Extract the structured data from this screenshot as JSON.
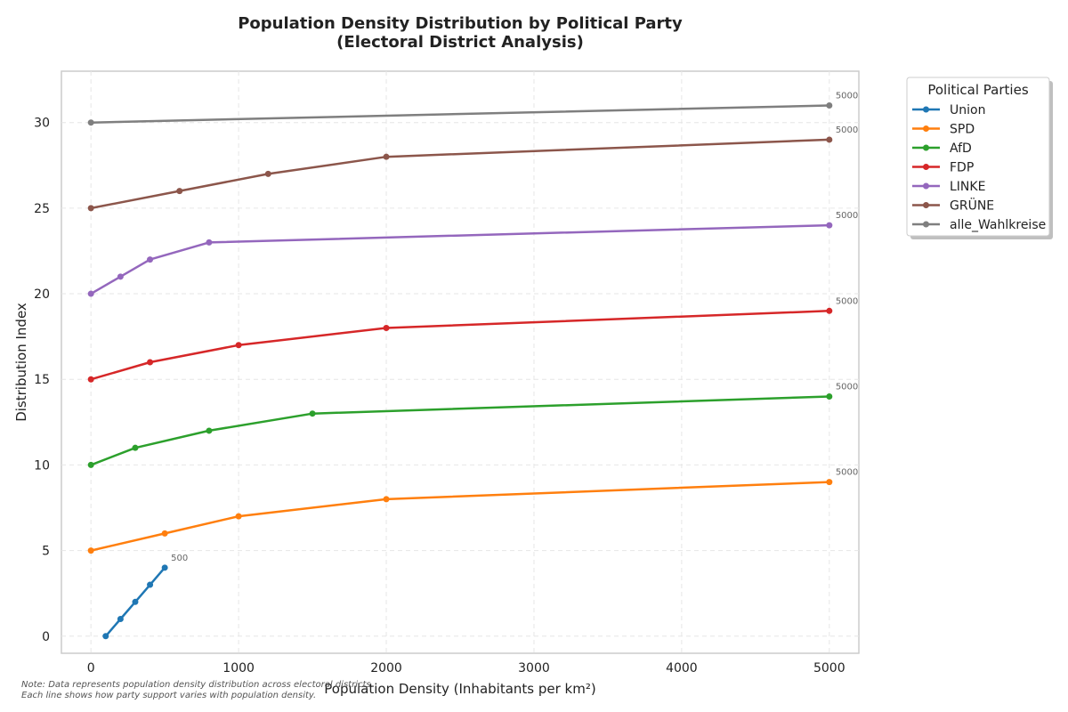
{
  "chart_data": {
    "type": "line",
    "title_line1": "Population Density Distribution by Political Party",
    "title_line2": "(Electoral District Analysis)",
    "xlabel": "Population Density (Inhabitants per km²)",
    "ylabel": "Distribution Index",
    "xlim": [
      -200,
      5200
    ],
    "ylim": [
      -1,
      33
    ],
    "xticks": [
      0,
      1000,
      2000,
      3000,
      4000,
      5000
    ],
    "yticks": [
      0,
      5,
      10,
      15,
      20,
      25,
      30
    ],
    "grid": true,
    "legend": {
      "title": "Political Parties",
      "placement": "outside top-right"
    },
    "series": [
      {
        "name": "Union",
        "color": "#1f77b4",
        "end_label": "500",
        "points": [
          [
            100,
            0
          ],
          [
            200,
            1
          ],
          [
            300,
            2
          ],
          [
            400,
            3
          ],
          [
            500,
            4
          ]
        ]
      },
      {
        "name": "SPD",
        "color": "#ff7f0e",
        "end_label": "5000",
        "points": [
          [
            0,
            5
          ],
          [
            500,
            6
          ],
          [
            1000,
            7
          ],
          [
            2000,
            8
          ],
          [
            5000,
            9
          ]
        ]
      },
      {
        "name": "AfD",
        "color": "#2ca02c",
        "end_label": "5000",
        "points": [
          [
            0,
            10
          ],
          [
            300,
            11
          ],
          [
            800,
            12
          ],
          [
            1500,
            13
          ],
          [
            5000,
            14
          ]
        ]
      },
      {
        "name": "FDP",
        "color": "#d62728",
        "end_label": "5000",
        "points": [
          [
            0,
            15
          ],
          [
            400,
            16
          ],
          [
            1000,
            17
          ],
          [
            2000,
            18
          ],
          [
            5000,
            19
          ]
        ]
      },
      {
        "name": "LINKE",
        "color": "#9467bd",
        "end_label": "5000",
        "points": [
          [
            0,
            20
          ],
          [
            200,
            21
          ],
          [
            400,
            22
          ],
          [
            800,
            23
          ],
          [
            5000,
            24
          ]
        ]
      },
      {
        "name": "GRÜNE",
        "color": "#8c564b",
        "end_label": "5000",
        "points": [
          [
            0,
            25
          ],
          [
            600,
            26
          ],
          [
            1200,
            27
          ],
          [
            2000,
            28
          ],
          [
            5000,
            29
          ]
        ]
      },
      {
        "name": "alle_Wahlkreise",
        "color": "#7f7f7f",
        "end_label": "5000",
        "points": [
          [
            0,
            30
          ],
          [
            5000,
            31
          ]
        ]
      }
    ],
    "note_line1": "Note: Data represents population density distribution across electoral districts.",
    "note_line2": "Each line shows how party support varies with population density."
  }
}
